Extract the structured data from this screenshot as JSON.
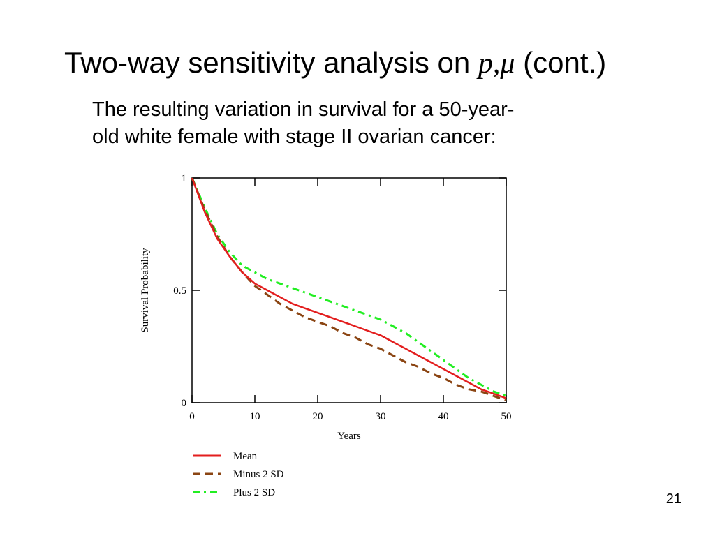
{
  "slide": {
    "title_prefix": "Two-way sensitivity analysis on ",
    "title_symbol": "p,μ",
    "title_suffix": " (cont.)",
    "subtitle_line1": "The resulting variation in survival for a 50-year-",
    "subtitle_line2": "old white female with stage II ovarian cancer:",
    "page_number": "21"
  },
  "chart_data": {
    "type": "line",
    "xlabel": "Years",
    "ylabel": "Survival Probability",
    "xlim": [
      0,
      50
    ],
    "ylim": [
      0,
      1
    ],
    "x_ticks": [
      0,
      10,
      20,
      30,
      40,
      50
    ],
    "y_ticks": [
      0,
      0.5,
      1
    ],
    "x_tick_labels": [
      "0",
      "10",
      "20",
      "30",
      "40",
      "50"
    ],
    "y_tick_labels": [
      "0",
      "0.5",
      "1"
    ],
    "grid": false,
    "legend_position": "bottom-left",
    "x": [
      0,
      2,
      4,
      6,
      8,
      10,
      12,
      14,
      16,
      18,
      20,
      22,
      24,
      26,
      28,
      30,
      32,
      34,
      36,
      38,
      40,
      42,
      44,
      46,
      48,
      50
    ],
    "series": [
      {
        "name": "Mean",
        "color": "#e31e1e",
        "dash": "solid",
        "values": [
          1.0,
          0.85,
          0.73,
          0.65,
          0.58,
          0.53,
          0.5,
          0.47,
          0.44,
          0.42,
          0.4,
          0.38,
          0.36,
          0.34,
          0.32,
          0.3,
          0.27,
          0.24,
          0.21,
          0.18,
          0.15,
          0.12,
          0.09,
          0.06,
          0.04,
          0.02
        ]
      },
      {
        "name": "Minus 2 SD",
        "color": "#8b4513",
        "dash": "dashed",
        "values": [
          1.0,
          0.86,
          0.74,
          0.65,
          0.58,
          0.52,
          0.48,
          0.44,
          0.41,
          0.38,
          0.36,
          0.34,
          0.31,
          0.29,
          0.26,
          0.24,
          0.21,
          0.18,
          0.16,
          0.13,
          0.11,
          0.08,
          0.06,
          0.05,
          0.03,
          0.01
        ]
      },
      {
        "name": "Plus 2 SD",
        "color": "#22ee22",
        "dash": "dashdot",
        "values": [
          1.0,
          0.87,
          0.75,
          0.67,
          0.61,
          0.58,
          0.55,
          0.53,
          0.51,
          0.49,
          0.47,
          0.45,
          0.43,
          0.41,
          0.39,
          0.37,
          0.34,
          0.31,
          0.27,
          0.23,
          0.19,
          0.15,
          0.11,
          0.08,
          0.05,
          0.03
        ]
      }
    ]
  }
}
